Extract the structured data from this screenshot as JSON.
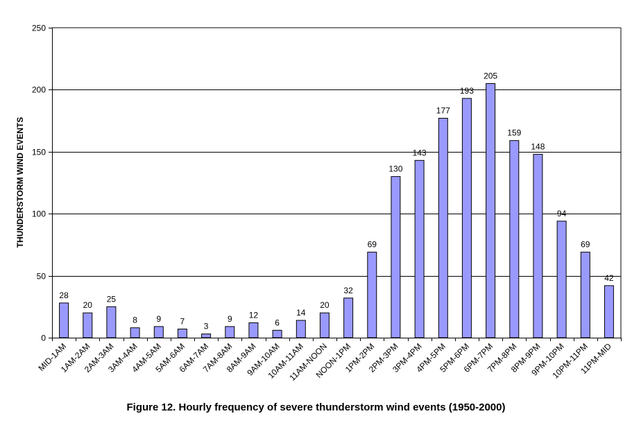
{
  "chart_data": {
    "type": "bar",
    "title": "Figure 12. Hourly frequency of severe thunderstorm wind events (1950-2000)",
    "xlabel": "",
    "ylabel": "THUNDERSTORM WIND EVENTS",
    "ylim": [
      0,
      250
    ],
    "yticks": [
      0,
      50,
      100,
      150,
      200,
      250
    ],
    "grid": true,
    "categories": [
      "MID-1AM",
      "1AM-2AM",
      "2AM-3AM",
      "3AM-4AM",
      "4AM-5AM",
      "5AM-6AM",
      "6AM-7AM",
      "7AM-8AM",
      "8AM-9AM",
      "9AM-10AM",
      "10AM-11AM",
      "11AM-NOON",
      "NOON-1PM",
      "1PM-2PM",
      "2PM-3PM",
      "3PM-4PM",
      "4PM-5PM",
      "5PM-6PM",
      "6PM-7PM",
      "7PM-8PM",
      "8PM-9PM",
      "9PM-10PM",
      "10PM-11PM",
      "11PM-MID"
    ],
    "values": [
      28,
      20,
      25,
      8,
      9,
      7,
      3,
      9,
      12,
      6,
      14,
      20,
      32,
      69,
      130,
      143,
      177,
      193,
      205,
      159,
      148,
      94,
      69,
      42
    ],
    "colors": {
      "bar_fill": "#9999ff",
      "bar_stroke": "#000000",
      "gridline": "#000000"
    }
  }
}
